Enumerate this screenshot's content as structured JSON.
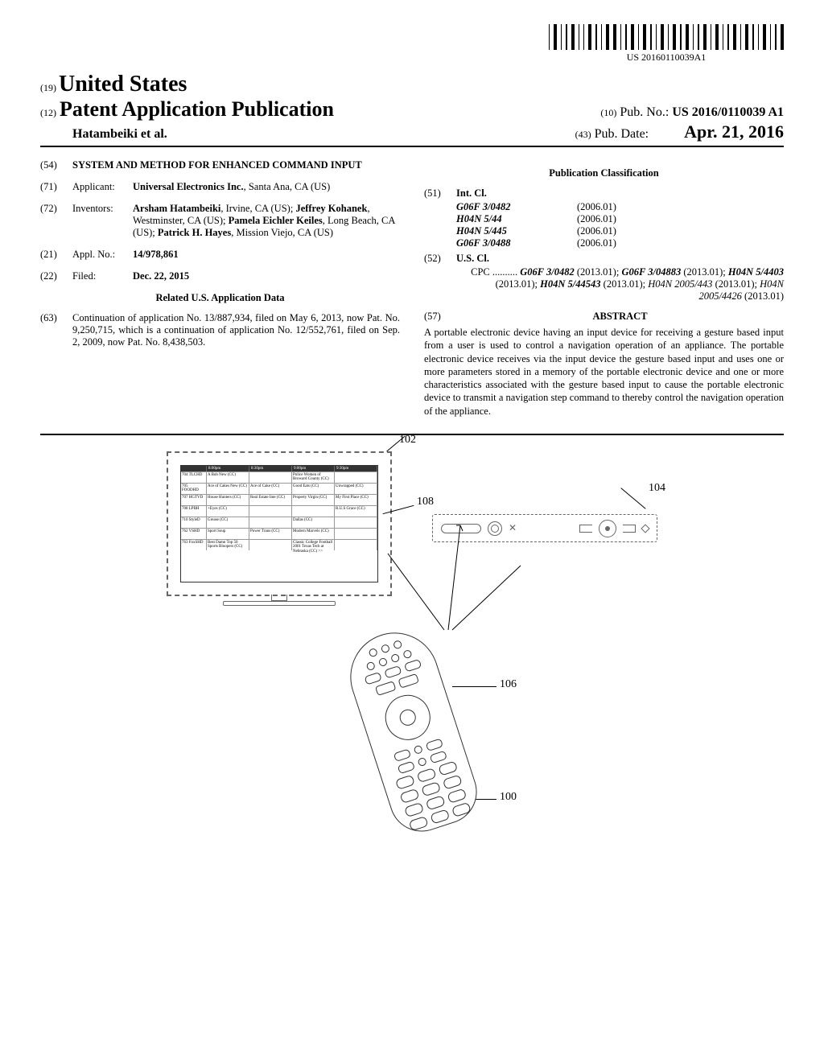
{
  "barcode_label": "US 20160110039A1",
  "header": {
    "country_code": "(19)",
    "country": "United States",
    "pub_type_code": "(12)",
    "pub_type": "Patent Application Publication",
    "authors": "Hatambeiki et al.",
    "pub_num_code": "(10)",
    "pub_num_label": "Pub. No.:",
    "pub_num": "US 2016/0110039 A1",
    "pub_date_code": "(43)",
    "pub_date_label": "Pub. Date:",
    "pub_date": "Apr. 21, 2016"
  },
  "left": {
    "title_code": "(54)",
    "title": "SYSTEM AND METHOD FOR ENHANCED COMMAND INPUT",
    "applicant_code": "(71)",
    "applicant_label": "Applicant:",
    "applicant": "Universal Electronics Inc.",
    "applicant_loc": ", Santa Ana, CA (US)",
    "inventors_code": "(72)",
    "inventors_label": "Inventors:",
    "inventors": "Arsham Hatambeiki, Irvine, CA (US); Jeffrey Kohanek, Westminster, CA (US); Pamela Eichler Keiles, Long Beach, CA (US); Patrick H. Hayes, Mission Viejo, CA (US)",
    "appl_code": "(21)",
    "appl_label": "Appl. No.:",
    "appl_num": "14/978,861",
    "filed_code": "(22)",
    "filed_label": "Filed:",
    "filed_date": "Dec. 22, 2015",
    "related_title": "Related U.S. Application Data",
    "cont_code": "(63)",
    "cont_text": "Continuation of application No. 13/887,934, filed on May 6, 2013, now Pat. No. 9,250,715, which is a continuation of application No. 12/552,761, filed on Sep. 2, 2009, now Pat. No. 8,438,503."
  },
  "right": {
    "class_title": "Publication Classification",
    "int_code": "(51)",
    "int_label": "Int. Cl.",
    "int_classes": [
      {
        "code": "G06F 3/0482",
        "year": "(2006.01)"
      },
      {
        "code": "H04N 5/44",
        "year": "(2006.01)"
      },
      {
        "code": "H04N 5/445",
        "year": "(2006.01)"
      },
      {
        "code": "G06F 3/0488",
        "year": "(2006.01)"
      }
    ],
    "us_code": "(52)",
    "us_label": "U.S. Cl.",
    "cpc_label": "CPC ..........",
    "cpc_text": "G06F 3/0482 (2013.01); G06F 3/04883 (2013.01); H04N 5/4403 (2013.01); H04N 5/44543 (2013.01); H04N 2005/443 (2013.01); H04N 2005/4426 (2013.01)",
    "abstract_code": "(57)",
    "abstract_label": "ABSTRACT",
    "abstract_text": "A portable electronic device having an input device for receiving a gesture based input from a user is used to control a navigation operation of an appliance. The portable electronic device receives via the input device the gesture based input and uses one or more parameters stored in a memory of the portable electronic device and one or more characteristics associated with the gesture based input to cause the portable electronic device to transmit a navigation step command to thereby control the navigation operation of the appliance."
  },
  "figure": {
    "ref_102": "102",
    "ref_108": "108",
    "ref_104": "104",
    "ref_106": "106",
    "ref_100": "100",
    "guide_times": [
      "8:00pm",
      "8:30pm",
      "9:00pm",
      "9:30pm"
    ],
    "guide_rows": [
      {
        "ch": "704 TLCHD",
        "cells": [
          "A Bob New (CC)",
          "",
          "Police Women of Broward County (CC)",
          ""
        ]
      },
      {
        "ch": "705 FOODHD",
        "cells": [
          "Ace of Cakes New (CC)",
          "Ace of Cake (CC)",
          "Good Eats (CC)",
          "Unwrapped (CC)"
        ]
      },
      {
        "ch": "707 HGTVD",
        "cells": [
          "House Hunters (CC)",
          "Real Estate Inte (CC)",
          "Property Virgin (CC)",
          "My First Place (CC)"
        ]
      },
      {
        "ch": "708 LPBH",
        "cells": [
          "+Eyes (CC)",
          "",
          "",
          "R.U.S Grace (CC)"
        ]
      },
      {
        "ch": "710 StyleD",
        "cells": [
          "Grease (CC)",
          "",
          "Dallas (CC)",
          ""
        ]
      },
      {
        "ch": "762 VSHD",
        "cells": [
          "Sport Soup",
          "Power Trans (CC)",
          "Modern Marvels (CC)",
          ""
        ]
      },
      {
        "ch": "763 FoxSHD",
        "cells": [
          "Best Damn Top 50 Sports Bloopers (CC)",
          "",
          "Classic College Football 2001 Texas Tech at Nebraska (CC) >>",
          ""
        ]
      }
    ]
  }
}
